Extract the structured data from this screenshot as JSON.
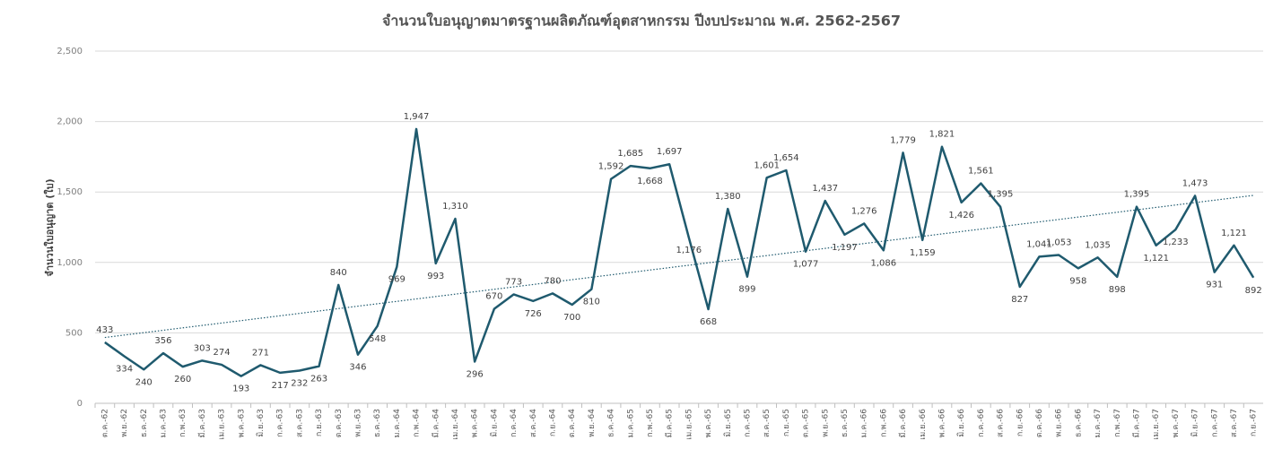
{
  "chart_data": {
    "type": "line",
    "title": "จำนวนใบอนุญาตมาตรฐานผลิตภัณฑ์อุตสาหกรรม ปีงบประมาณ พ.ศ. 2562-2567",
    "y_label": "จำนวนใบอนุญาต (ใบ)",
    "categories": [
      "ต.ค.-62",
      "พ.ย.-62",
      "ธ.ค.-62",
      "ม.ค.-63",
      "ก.พ.-63",
      "มี.ค.-63",
      "เม.ย.-63",
      "พ.ค.-63",
      "มิ.ย.-63",
      "ก.ค.-63",
      "ส.ค.-63",
      "ก.ย.-63",
      "ต.ค.-63",
      "พ.ย.-63",
      "ธ.ค.-63",
      "ม.ค.-64",
      "ก.พ.-64",
      "มี.ค.-64",
      "เม.ย.-64",
      "พ.ค.-64",
      "มิ.ย.-64",
      "ก.ค.-64",
      "ส.ค.-64",
      "ก.ย.-64",
      "ต.ค.-64",
      "พ.ย.-64",
      "ธ.ค.-64",
      "ม.ค.-65",
      "ก.พ.-65",
      "มี.ค.-65",
      "เม.ย.-65",
      "พ.ค.-65",
      "มิ.ย.-65",
      "ก.ค.-65",
      "ส.ค.-65",
      "ก.ย.-65",
      "ต.ค.-65",
      "พ.ย.-65",
      "ธ.ค.-65",
      "ม.ค.-66",
      "ก.พ.-66",
      "มี.ค.-66",
      "เม.ย.-66",
      "พ.ค.-66",
      "มิ.ย.-66",
      "ก.ค.-66",
      "ส.ค.-66",
      "ก.ย.-66",
      "ต.ค.-66",
      "พ.ย.-66",
      "ธ.ค.-66",
      "ม.ค.-67",
      "ก.พ.-67",
      "มี.ค.-67",
      "เม.ย.-67",
      "พ.ค.-67",
      "มิ.ย.-67",
      "ก.ค.-67",
      "ส.ค.-67",
      "ก.ย.-67"
    ],
    "values": [
      433,
      334,
      240,
      356,
      260,
      303,
      274,
      193,
      271,
      217,
      232,
      263,
      840,
      346,
      548,
      969,
      1947,
      993,
      1310,
      296,
      670,
      773,
      726,
      780,
      700,
      810,
      1592,
      1685,
      1668,
      1697,
      1176,
      668,
      1380,
      899,
      1601,
      1654,
      1077,
      1437,
      1197,
      1276,
      1086,
      1779,
      1159,
      1821,
      1426,
      1561,
      1395,
      827,
      1041,
      1053,
      958,
      1035,
      898,
      1395,
      1121,
      1233,
      1473,
      931,
      1121,
      892
    ],
    "value_labels": [
      "433",
      "334",
      "240",
      "356",
      "260",
      "303",
      "274",
      "193",
      "271",
      "217",
      "232",
      "263",
      "840",
      "346",
      "548",
      "969",
      "1,947",
      "993",
      "1,310",
      "296",
      "670",
      "773",
      "726",
      "780",
      "700",
      "810",
      "1,592",
      "1,685",
      "1,668",
      "1,697",
      "1,176",
      "668",
      "1,380",
      "899",
      "1,601",
      "1,654",
      "1,077",
      "1,437",
      "1,197",
      "1,276",
      "1,086",
      "1,779",
      "1,159",
      "1,821",
      "1,426",
      "1,561",
      "1,395",
      "827",
      "1,041",
      "1,053",
      "958",
      "1,035",
      "898",
      "1,395",
      "1,121",
      "1,233",
      "1,473",
      "931",
      "1,121",
      "892"
    ],
    "color": "#1f5a6e",
    "trendline": true,
    "ylim": [
      0,
      2500
    ],
    "yticks": [
      0,
      {
        "value": 500,
        "label": "500"
      },
      {
        "value": 1000,
        "label": "1,000"
      },
      {
        "value": 1500,
        "label": "1,500"
      },
      {
        "value": 2000,
        "label": "2,000"
      },
      {
        "value": 2500,
        "label": "2,500"
      }
    ],
    "grid": true
  }
}
